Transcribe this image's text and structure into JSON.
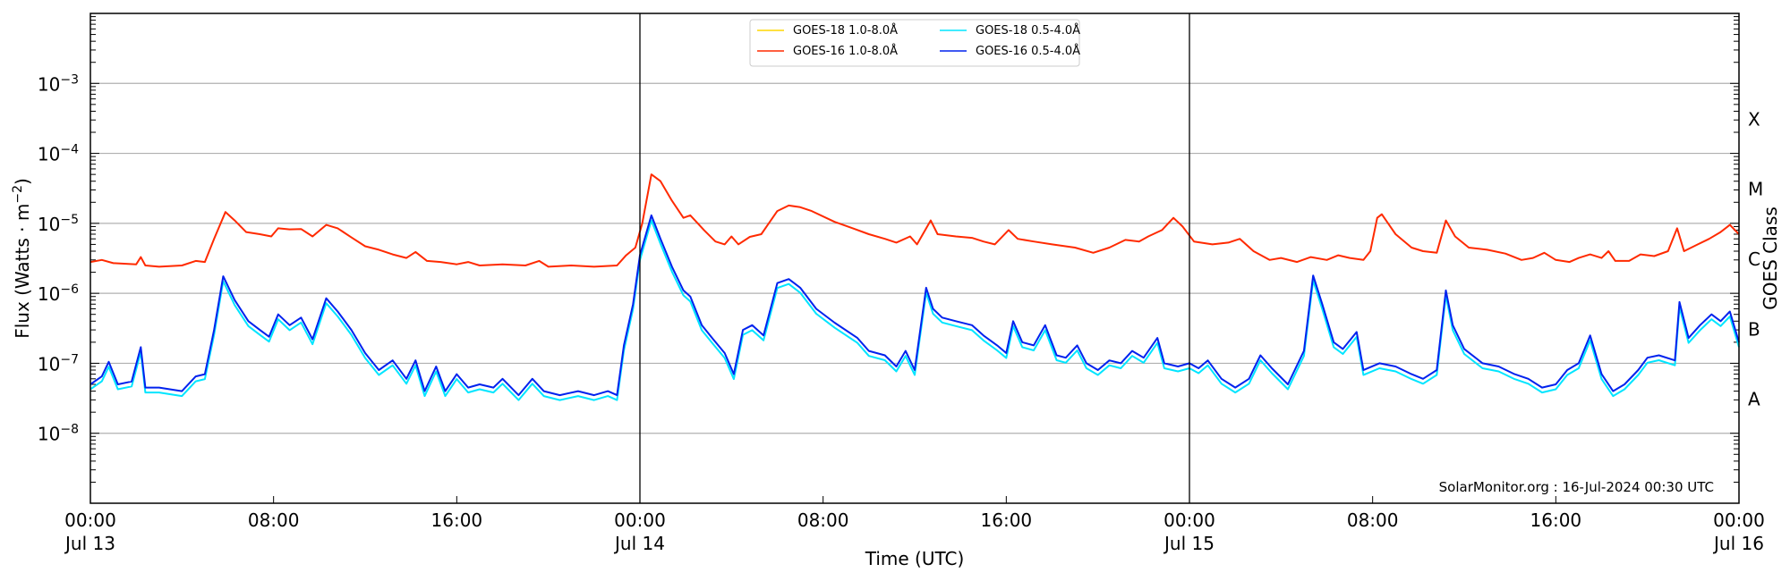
{
  "chart_data": {
    "type": "line",
    "title": "",
    "xlabel": "Time (UTC)",
    "ylabel": "Flux (Watts · m^-2)",
    "ylabel_right": "GOES Class",
    "yscale": "log",
    "ylim": [
      1e-09,
      0.01
    ],
    "xlim_hours": [
      0,
      72
    ],
    "grid": "horizontal at decades",
    "legend_position": "upper center",
    "x_ticks": [
      {
        "hour": 0,
        "time": "00:00",
        "date": "Jul 13"
      },
      {
        "hour": 8,
        "time": "08:00",
        "date": ""
      },
      {
        "hour": 16,
        "time": "16:00",
        "date": ""
      },
      {
        "hour": 24,
        "time": "00:00",
        "date": "Jul 14"
      },
      {
        "hour": 32,
        "time": "08:00",
        "date": ""
      },
      {
        "hour": 40,
        "time": "16:00",
        "date": ""
      },
      {
        "hour": 48,
        "time": "00:00",
        "date": "Jul 15"
      },
      {
        "hour": 56,
        "time": "08:00",
        "date": ""
      },
      {
        "hour": 64,
        "time": "16:00",
        "date": ""
      },
      {
        "hour": 72,
        "time": "00:00",
        "date": "Jul 16"
      }
    ],
    "day_boundaries_hours": [
      24,
      48
    ],
    "y_ticks": [
      {
        "exp": -3,
        "label": "10^-3"
      },
      {
        "exp": -4,
        "label": "10^-4"
      },
      {
        "exp": -5,
        "label": "10^-5"
      },
      {
        "exp": -6,
        "label": "10^-6"
      },
      {
        "exp": -7,
        "label": "10^-7"
      },
      {
        "exp": -8,
        "label": "10^-8"
      }
    ],
    "goes_classes": [
      {
        "label": "X",
        "exp": -3.5
      },
      {
        "label": "M",
        "exp": -4.5
      },
      {
        "label": "C",
        "exp": -5.5
      },
      {
        "label": "B",
        "exp": -6.5
      },
      {
        "label": "A",
        "exp": -7.5
      }
    ],
    "series": [
      {
        "name": "GOES-18 1.0-8.0Å",
        "color": "#ffd700",
        "draw": false,
        "points": []
      },
      {
        "name": "GOES-16 1.0-8.0Å",
        "color": "#ff2a00",
        "points": [
          [
            0,
            2.8e-06
          ],
          [
            0.5,
            3e-06
          ],
          [
            1,
            2.7e-06
          ],
          [
            2,
            2.6e-06
          ],
          [
            2.2,
            3.3e-06
          ],
          [
            2.4,
            2.5e-06
          ],
          [
            3,
            2.4e-06
          ],
          [
            4,
            2.5e-06
          ],
          [
            4.6,
            2.9e-06
          ],
          [
            5,
            2.8e-06
          ],
          [
            5.4,
            6e-06
          ],
          [
            5.9,
            1.45e-05
          ],
          [
            6.3,
            1.1e-05
          ],
          [
            6.8,
            7.5e-06
          ],
          [
            7.4,
            7e-06
          ],
          [
            7.9,
            6.5e-06
          ],
          [
            8.2,
            8.5e-06
          ],
          [
            8.7,
            8.2e-06
          ],
          [
            9.2,
            8.3e-06
          ],
          [
            9.7,
            6.5e-06
          ],
          [
            10.3,
            9.5e-06
          ],
          [
            10.8,
            8.5e-06
          ],
          [
            11.4,
            6.3e-06
          ],
          [
            12,
            4.7e-06
          ],
          [
            12.6,
            4.2e-06
          ],
          [
            13.2,
            3.6e-06
          ],
          [
            13.8,
            3.2e-06
          ],
          [
            14.2,
            3.9e-06
          ],
          [
            14.7,
            2.9e-06
          ],
          [
            15.3,
            2.8e-06
          ],
          [
            16,
            2.6e-06
          ],
          [
            16.5,
            2.8e-06
          ],
          [
            17,
            2.5e-06
          ],
          [
            18,
            2.6e-06
          ],
          [
            19,
            2.5e-06
          ],
          [
            19.6,
            2.9e-06
          ],
          [
            20,
            2.4e-06
          ],
          [
            21,
            2.5e-06
          ],
          [
            22,
            2.4e-06
          ],
          [
            23,
            2.5e-06
          ],
          [
            23.4,
            3.5e-06
          ],
          [
            23.8,
            4.5e-06
          ],
          [
            24.1,
            1e-05
          ],
          [
            24.5,
            5e-05
          ],
          [
            24.9,
            4e-05
          ],
          [
            25.4,
            2.1e-05
          ],
          [
            25.9,
            1.2e-05
          ],
          [
            26.2,
            1.3e-05
          ],
          [
            26.8,
            8e-06
          ],
          [
            27.3,
            5.5e-06
          ],
          [
            27.7,
            5e-06
          ],
          [
            28,
            6.5e-06
          ],
          [
            28.3,
            5e-06
          ],
          [
            28.8,
            6.4e-06
          ],
          [
            29.3,
            7e-06
          ],
          [
            30,
            1.5e-05
          ],
          [
            30.5,
            1.8e-05
          ],
          [
            31,
            1.7e-05
          ],
          [
            31.5,
            1.5e-05
          ],
          [
            32.5,
            1.05e-05
          ],
          [
            33.3,
            8.5e-06
          ],
          [
            34,
            7e-06
          ],
          [
            34.7,
            6e-06
          ],
          [
            35.2,
            5.3e-06
          ],
          [
            35.8,
            6.5e-06
          ],
          [
            36.1,
            5e-06
          ],
          [
            36.7,
            1.1e-05
          ],
          [
            37,
            7e-06
          ],
          [
            37.8,
            6.5e-06
          ],
          [
            38.5,
            6.2e-06
          ],
          [
            39,
            5.5e-06
          ],
          [
            39.5,
            5e-06
          ],
          [
            40.1,
            8e-06
          ],
          [
            40.5,
            6e-06
          ],
          [
            41.2,
            5.5e-06
          ],
          [
            42,
            5e-06
          ],
          [
            43,
            4.5e-06
          ],
          [
            43.8,
            3.8e-06
          ],
          [
            44.5,
            4.5e-06
          ],
          [
            45.2,
            5.8e-06
          ],
          [
            45.8,
            5.5e-06
          ],
          [
            46.2,
            6.5e-06
          ],
          [
            46.8,
            8e-06
          ],
          [
            47.3,
            1.2e-05
          ],
          [
            47.7,
            9e-06
          ],
          [
            48.2,
            5.5e-06
          ],
          [
            49,
            5e-06
          ],
          [
            49.7,
            5.3e-06
          ],
          [
            50.2,
            6e-06
          ],
          [
            50.8,
            4e-06
          ],
          [
            51.5,
            3e-06
          ],
          [
            52,
            3.2e-06
          ],
          [
            52.7,
            2.8e-06
          ],
          [
            53.3,
            3.3e-06
          ],
          [
            54,
            3e-06
          ],
          [
            54.5,
            3.5e-06
          ],
          [
            55,
            3.2e-06
          ],
          [
            55.6,
            3e-06
          ],
          [
            55.9,
            4e-06
          ],
          [
            56.2,
            1.2e-05
          ],
          [
            56.4,
            1.35e-05
          ],
          [
            57,
            7e-06
          ],
          [
            57.7,
            4.5e-06
          ],
          [
            58.2,
            4e-06
          ],
          [
            58.8,
            3.8e-06
          ],
          [
            59.2,
            1.1e-05
          ],
          [
            59.6,
            6.5e-06
          ],
          [
            60.2,
            4.5e-06
          ],
          [
            61,
            4.2e-06
          ],
          [
            61.8,
            3.7e-06
          ],
          [
            62.5,
            3e-06
          ],
          [
            63,
            3.2e-06
          ],
          [
            63.5,
            3.8e-06
          ],
          [
            64,
            3e-06
          ],
          [
            64.6,
            2.8e-06
          ],
          [
            65,
            3.2e-06
          ],
          [
            65.5,
            3.6e-06
          ],
          [
            66,
            3.2e-06
          ],
          [
            66.3,
            4e-06
          ],
          [
            66.6,
            2.9e-06
          ],
          [
            67.2,
            2.9e-06
          ],
          [
            67.7,
            3.6e-06
          ],
          [
            68.3,
            3.4e-06
          ],
          [
            68.9,
            4e-06
          ],
          [
            69.3,
            8.5e-06
          ],
          [
            69.6,
            4e-06
          ],
          [
            70.2,
            5e-06
          ],
          [
            70.7,
            6e-06
          ],
          [
            71.2,
            7.5e-06
          ],
          [
            71.6,
            9.5e-06
          ],
          [
            72,
            7e-06
          ]
        ]
      },
      {
        "name": "GOES-18 0.5-4.0Å",
        "color": "#00e5ff",
        "offset_factor": 0.85,
        "points": "same shape as GOES-16 0.5-4.0Å, slightly lower at minima"
      },
      {
        "name": "GOES-16 0.5-4.0Å",
        "color": "#0022ee",
        "points": [
          [
            0,
            5e-08
          ],
          [
            0.5,
            6.5e-08
          ],
          [
            0.8,
            1.05e-07
          ],
          [
            1.2,
            5e-08
          ],
          [
            1.8,
            5.5e-08
          ],
          [
            2.2,
            1.7e-07
          ],
          [
            2.4,
            4.5e-08
          ],
          [
            3,
            4.5e-08
          ],
          [
            4,
            4e-08
          ],
          [
            4.6,
            6.5e-08
          ],
          [
            5,
            7e-08
          ],
          [
            5.4,
            3e-07
          ],
          [
            5.8,
            1.75e-06
          ],
          [
            6.3,
            8e-07
          ],
          [
            6.9,
            4e-07
          ],
          [
            7.4,
            3e-07
          ],
          [
            7.8,
            2.4e-07
          ],
          [
            8.2,
            5e-07
          ],
          [
            8.7,
            3.5e-07
          ],
          [
            9.2,
            4.5e-07
          ],
          [
            9.7,
            2.2e-07
          ],
          [
            10.3,
            8.5e-07
          ],
          [
            10.8,
            5.5e-07
          ],
          [
            11.4,
            3e-07
          ],
          [
            12,
            1.4e-07
          ],
          [
            12.6,
            8e-08
          ],
          [
            13.2,
            1.1e-07
          ],
          [
            13.8,
            6e-08
          ],
          [
            14.2,
            1.1e-07
          ],
          [
            14.6,
            4e-08
          ],
          [
            15.1,
            9e-08
          ],
          [
            15.5,
            4e-08
          ],
          [
            16,
            7e-08
          ],
          [
            16.5,
            4.5e-08
          ],
          [
            17,
            5e-08
          ],
          [
            17.6,
            4.5e-08
          ],
          [
            18,
            6e-08
          ],
          [
            18.7,
            3.5e-08
          ],
          [
            19.3,
            6e-08
          ],
          [
            19.8,
            4e-08
          ],
          [
            20.5,
            3.5e-08
          ],
          [
            21.3,
            4e-08
          ],
          [
            22,
            3.5e-08
          ],
          [
            22.6,
            4e-08
          ],
          [
            23,
            3.5e-08
          ],
          [
            23.3,
            1.8e-07
          ],
          [
            23.7,
            7e-07
          ],
          [
            24,
            3.5e-06
          ],
          [
            24.5,
            1.3e-05
          ],
          [
            24.9,
            6e-06
          ],
          [
            25.4,
            2.4e-06
          ],
          [
            25.9,
            1.1e-06
          ],
          [
            26.2,
            9e-07
          ],
          [
            26.7,
            3.5e-07
          ],
          [
            27.2,
            2.2e-07
          ],
          [
            27.7,
            1.4e-07
          ],
          [
            28.1,
            7e-08
          ],
          [
            28.5,
            3e-07
          ],
          [
            28.9,
            3.5e-07
          ],
          [
            29.4,
            2.5e-07
          ],
          [
            30,
            1.4e-06
          ],
          [
            30.5,
            1.6e-06
          ],
          [
            31,
            1.2e-06
          ],
          [
            31.7,
            6e-07
          ],
          [
            32.5,
            3.8e-07
          ],
          [
            33.5,
            2.3e-07
          ],
          [
            34,
            1.5e-07
          ],
          [
            34.7,
            1.3e-07
          ],
          [
            35.2,
            9e-08
          ],
          [
            35.6,
            1.5e-07
          ],
          [
            36,
            8e-08
          ],
          [
            36.5,
            1.2e-06
          ],
          [
            36.8,
            6e-07
          ],
          [
            37.2,
            4.5e-07
          ],
          [
            37.8,
            4e-07
          ],
          [
            38.5,
            3.5e-07
          ],
          [
            39,
            2.5e-07
          ],
          [
            39.6,
            1.8e-07
          ],
          [
            40,
            1.4e-07
          ],
          [
            40.3,
            4e-07
          ],
          [
            40.7,
            2e-07
          ],
          [
            41.2,
            1.8e-07
          ],
          [
            41.7,
            3.5e-07
          ],
          [
            42.2,
            1.3e-07
          ],
          [
            42.6,
            1.2e-07
          ],
          [
            43.1,
            1.8e-07
          ],
          [
            43.5,
            1e-07
          ],
          [
            44,
            8e-08
          ],
          [
            44.5,
            1.1e-07
          ],
          [
            45,
            1e-07
          ],
          [
            45.5,
            1.5e-07
          ],
          [
            46,
            1.2e-07
          ],
          [
            46.6,
            2.3e-07
          ],
          [
            46.9,
            1e-07
          ],
          [
            47.5,
            9e-08
          ],
          [
            48,
            1e-07
          ],
          [
            48.4,
            8.5e-08
          ],
          [
            48.8,
            1.1e-07
          ],
          [
            49.4,
            6e-08
          ],
          [
            50,
            4.5e-08
          ],
          [
            50.6,
            6e-08
          ],
          [
            51.1,
            1.3e-07
          ],
          [
            51.6,
            8.5e-08
          ],
          [
            52.3,
            5e-08
          ],
          [
            53,
            1.5e-07
          ],
          [
            53.4,
            1.8e-06
          ],
          [
            53.8,
            7e-07
          ],
          [
            54.3,
            2e-07
          ],
          [
            54.7,
            1.6e-07
          ],
          [
            55.3,
            2.8e-07
          ],
          [
            55.6,
            8e-08
          ],
          [
            56.3,
            1e-07
          ],
          [
            57,
            9e-08
          ],
          [
            57.7,
            7e-08
          ],
          [
            58.2,
            6e-08
          ],
          [
            58.8,
            8e-08
          ],
          [
            59.2,
            1.1e-06
          ],
          [
            59.5,
            3.5e-07
          ],
          [
            60,
            1.6e-07
          ],
          [
            60.8,
            1e-07
          ],
          [
            61.5,
            9e-08
          ],
          [
            62.2,
            7e-08
          ],
          [
            62.8,
            6e-08
          ],
          [
            63.4,
            4.5e-08
          ],
          [
            64,
            5e-08
          ],
          [
            64.5,
            8e-08
          ],
          [
            65,
            1e-07
          ],
          [
            65.5,
            2.5e-07
          ],
          [
            66,
            7e-08
          ],
          [
            66.5,
            4e-08
          ],
          [
            67,
            5e-08
          ],
          [
            67.6,
            8e-08
          ],
          [
            68,
            1.2e-07
          ],
          [
            68.5,
            1.3e-07
          ],
          [
            69.2,
            1.1e-07
          ],
          [
            69.4,
            7.5e-07
          ],
          [
            69.8,
            2.3e-07
          ],
          [
            70.3,
            3.5e-07
          ],
          [
            70.8,
            5e-07
          ],
          [
            71.2,
            4e-07
          ],
          [
            71.6,
            5.5e-07
          ],
          [
            72,
            2e-07
          ]
        ]
      }
    ],
    "annotation": "SolarMonitor.org : 16-Jul-2024 00:30 UTC"
  },
  "legend": {
    "items": [
      {
        "label": "GOES-18 1.0-8.0Å",
        "color": "#ffd700"
      },
      {
        "label": "GOES-18 0.5-4.0Å",
        "color": "#00e5ff"
      },
      {
        "label": "GOES-16 1.0-8.0Å",
        "color": "#ff2a00"
      },
      {
        "label": "GOES-16 0.5-4.0Å",
        "color": "#0022ee"
      }
    ]
  },
  "axes": {
    "x_title": "Time (UTC)",
    "y_title": "Flux (Watts · m⁻²)",
    "y_right_title": "GOES Class"
  },
  "watermark": "SolarMonitor.org : 16-Jul-2024 00:30 UTC"
}
